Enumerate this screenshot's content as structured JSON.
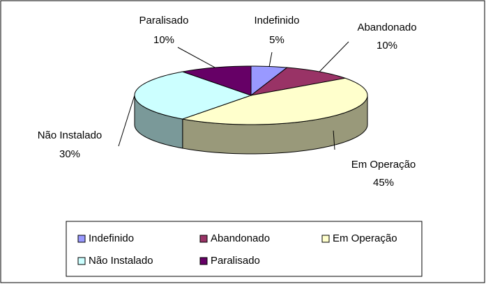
{
  "chart_data": {
    "type": "pie",
    "categories": [
      "Indefinido",
      "Abandonado",
      "Em Operação",
      "Não Instalado",
      "Paralisado"
    ],
    "values": [
      5,
      10,
      45,
      30,
      10
    ],
    "value_labels": [
      "5%",
      "10%",
      "45%",
      "30%",
      "10%"
    ],
    "colors": [
      "#9999FF",
      "#993366",
      "#FFFFCC",
      "#CCFFFF",
      "#660066"
    ],
    "legend": "bottom"
  }
}
